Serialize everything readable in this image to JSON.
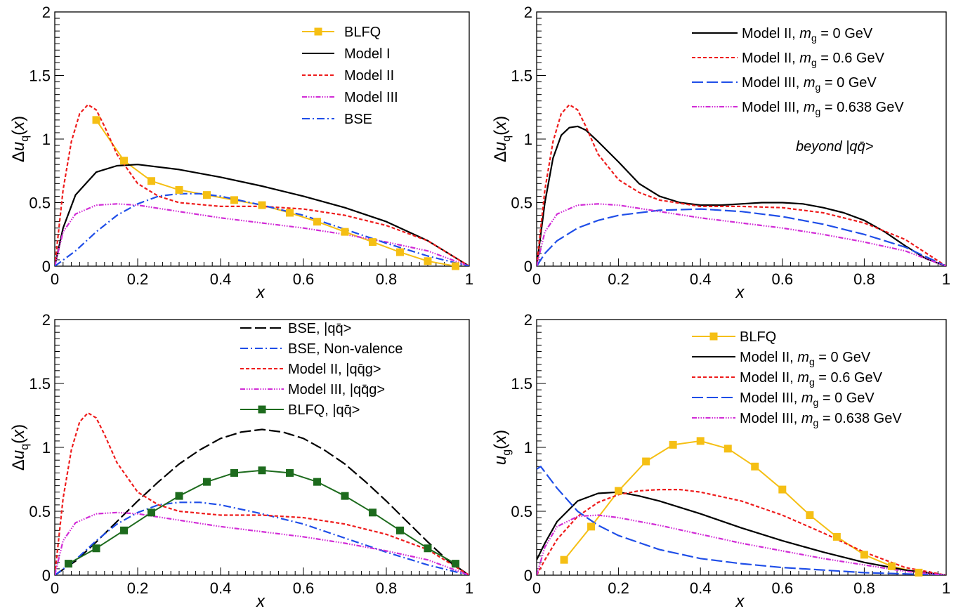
{
  "chart_data": [
    {
      "type": "line",
      "xlabel": "x",
      "ylabel": "Δu_q(x)",
      "xlim": [
        0,
        1
      ],
      "ylim": [
        0,
        2
      ],
      "xticks": [
        "0",
        "0.2",
        "0.4",
        "0.6",
        "0.8",
        "1"
      ],
      "yticks": [
        "0",
        "0.5",
        "1",
        "1.5",
        "2"
      ],
      "grid": false,
      "legend_position": "top-right",
      "annotation": "",
      "series": [
        {
          "name": "BLFQ",
          "color": "#f5bf14",
          "dash": "",
          "marker": "square",
          "x": [
            0.1,
            0.167,
            0.233,
            0.3,
            0.367,
            0.433,
            0.5,
            0.567,
            0.633,
            0.7,
            0.767,
            0.833,
            0.9,
            0.967
          ],
          "y": [
            1.15,
            0.83,
            0.67,
            0.6,
            0.56,
            0.52,
            0.48,
            0.42,
            0.35,
            0.27,
            0.19,
            0.11,
            0.04,
            0.0
          ]
        },
        {
          "name": "Model I",
          "color": "#000000",
          "dash": "",
          "x": [
            0,
            0.02,
            0.05,
            0.1,
            0.15,
            0.2,
            0.3,
            0.4,
            0.5,
            0.6,
            0.7,
            0.8,
            0.9,
            1.0
          ],
          "y": [
            0,
            0.3,
            0.56,
            0.74,
            0.79,
            0.8,
            0.76,
            0.7,
            0.63,
            0.55,
            0.46,
            0.35,
            0.2,
            0
          ]
        },
        {
          "name": "Model II",
          "color": "#ee1c1c",
          "dash": "5,3",
          "x": [
            0,
            0.02,
            0.04,
            0.06,
            0.08,
            0.1,
            0.12,
            0.15,
            0.2,
            0.25,
            0.3,
            0.4,
            0.5,
            0.6,
            0.7,
            0.8,
            0.9,
            1.0
          ],
          "y": [
            0,
            0.6,
            0.98,
            1.2,
            1.27,
            1.23,
            1.1,
            0.88,
            0.65,
            0.55,
            0.5,
            0.47,
            0.47,
            0.45,
            0.4,
            0.32,
            0.2,
            0
          ]
        },
        {
          "name": "Model III",
          "color": "#d12bd6",
          "dash": "7,2,1.5,2,1.5,2,1.5,2",
          "x": [
            0,
            0.02,
            0.05,
            0.1,
            0.15,
            0.2,
            0.3,
            0.4,
            0.5,
            0.6,
            0.7,
            0.8,
            0.9,
            1.0
          ],
          "y": [
            0,
            0.27,
            0.41,
            0.48,
            0.49,
            0.48,
            0.43,
            0.38,
            0.34,
            0.3,
            0.25,
            0.19,
            0.12,
            0
          ]
        },
        {
          "name": "BSE",
          "color": "#1f4ee8",
          "dash": "11,4,2,4",
          "x": [
            0,
            0.05,
            0.1,
            0.15,
            0.2,
            0.25,
            0.3,
            0.35,
            0.4,
            0.5,
            0.6,
            0.7,
            0.8,
            0.9,
            1.0
          ],
          "y": [
            0,
            0.12,
            0.27,
            0.4,
            0.49,
            0.55,
            0.57,
            0.57,
            0.55,
            0.48,
            0.4,
            0.29,
            0.18,
            0.08,
            0
          ]
        }
      ]
    },
    {
      "type": "line",
      "xlabel": "x",
      "ylabel": "Δu_q(x)",
      "xlim": [
        0,
        1
      ],
      "ylim": [
        0,
        2
      ],
      "xticks": [
        "0",
        "0.2",
        "0.4",
        "0.6",
        "0.8",
        "1"
      ],
      "yticks": [
        "0",
        "0.5",
        "1",
        "1.5",
        "2"
      ],
      "grid": false,
      "legend_position": "top-right",
      "annotation": "beyond |qq̄>",
      "series": [
        {
          "name": "Model II,  m_g = 0 GeV",
          "color": "#000000",
          "dash": "",
          "x": [
            0,
            0.02,
            0.04,
            0.06,
            0.08,
            0.1,
            0.12,
            0.15,
            0.2,
            0.25,
            0.3,
            0.35,
            0.4,
            0.45,
            0.5,
            0.55,
            0.6,
            0.65,
            0.7,
            0.75,
            0.8,
            0.85,
            0.9,
            0.95,
            1.0
          ],
          "y": [
            0,
            0.5,
            0.85,
            1.03,
            1.09,
            1.1,
            1.07,
            0.98,
            0.82,
            0.65,
            0.55,
            0.5,
            0.48,
            0.48,
            0.49,
            0.5,
            0.5,
            0.49,
            0.46,
            0.42,
            0.36,
            0.27,
            0.16,
            0.06,
            0
          ]
        },
        {
          "name": "Model II,  m_g = 0.6 GeV",
          "color": "#ee1c1c",
          "dash": "5,3",
          "x": [
            0,
            0.02,
            0.04,
            0.06,
            0.08,
            0.1,
            0.12,
            0.15,
            0.2,
            0.25,
            0.3,
            0.4,
            0.5,
            0.6,
            0.7,
            0.8,
            0.9,
            1.0
          ],
          "y": [
            0,
            0.6,
            0.98,
            1.2,
            1.27,
            1.23,
            1.1,
            0.88,
            0.68,
            0.58,
            0.52,
            0.47,
            0.47,
            0.46,
            0.42,
            0.34,
            0.21,
            0
          ]
        },
        {
          "name": "Model III, m_g = 0 GeV",
          "color": "#1f4ee8",
          "dash": "16,5",
          "x": [
            0,
            0.02,
            0.05,
            0.1,
            0.15,
            0.2,
            0.3,
            0.4,
            0.5,
            0.6,
            0.7,
            0.8,
            0.9,
            1.0
          ],
          "y": [
            0,
            0.1,
            0.2,
            0.3,
            0.36,
            0.4,
            0.44,
            0.45,
            0.43,
            0.39,
            0.33,
            0.25,
            0.15,
            0
          ]
        },
        {
          "name": "Model III, m_g = 0.638 GeV",
          "color": "#d12bd6",
          "dash": "7,2,1.5,2,1.5,2,1.5,2",
          "x": [
            0,
            0.02,
            0.05,
            0.1,
            0.15,
            0.2,
            0.3,
            0.4,
            0.5,
            0.6,
            0.7,
            0.8,
            0.9,
            1.0
          ],
          "y": [
            0,
            0.27,
            0.41,
            0.48,
            0.49,
            0.48,
            0.43,
            0.38,
            0.34,
            0.3,
            0.25,
            0.19,
            0.12,
            0
          ]
        }
      ]
    },
    {
      "type": "line",
      "xlabel": "x",
      "ylabel": "Δu_q(x)",
      "xlim": [
        0,
        1
      ],
      "ylim": [
        0,
        2
      ],
      "xticks": [
        "0",
        "0.2",
        "0.4",
        "0.6",
        "0.8",
        "1"
      ],
      "yticks": [
        "0",
        "0.5",
        "1",
        "1.5",
        "2"
      ],
      "grid": false,
      "legend_position": "top-right",
      "annotation": "",
      "series": [
        {
          "name": "BSE, |qq̄>",
          "color": "#000000",
          "dash": "16,5",
          "x": [
            0,
            0.05,
            0.1,
            0.15,
            0.2,
            0.25,
            0.3,
            0.35,
            0.4,
            0.45,
            0.5,
            0.55,
            0.6,
            0.65,
            0.7,
            0.75,
            0.8,
            0.85,
            0.9,
            0.95,
            1.0
          ],
          "y": [
            0,
            0.11,
            0.26,
            0.42,
            0.58,
            0.73,
            0.87,
            0.98,
            1.07,
            1.12,
            1.14,
            1.12,
            1.07,
            0.98,
            0.87,
            0.73,
            0.58,
            0.42,
            0.26,
            0.11,
            0
          ]
        },
        {
          "name": "BSE, Non-valence",
          "color": "#1f4ee8",
          "dash": "11,4,2,4",
          "x": [
            0,
            0.05,
            0.1,
            0.15,
            0.2,
            0.25,
            0.3,
            0.35,
            0.4,
            0.5,
            0.6,
            0.7,
            0.8,
            0.9,
            1.0
          ],
          "y": [
            0,
            0.12,
            0.27,
            0.4,
            0.49,
            0.55,
            0.57,
            0.57,
            0.55,
            0.48,
            0.4,
            0.29,
            0.18,
            0.08,
            0
          ]
        },
        {
          "name": "Model II,  |qq̄g>",
          "color": "#ee1c1c",
          "dash": "5,3",
          "x": [
            0,
            0.02,
            0.04,
            0.06,
            0.08,
            0.1,
            0.12,
            0.15,
            0.2,
            0.25,
            0.3,
            0.4,
            0.5,
            0.6,
            0.7,
            0.8,
            0.9,
            1.0
          ],
          "y": [
            0,
            0.6,
            0.98,
            1.2,
            1.27,
            1.23,
            1.1,
            0.88,
            0.65,
            0.55,
            0.5,
            0.47,
            0.47,
            0.45,
            0.4,
            0.32,
            0.2,
            0
          ]
        },
        {
          "name": "Model III, |qq̄g>",
          "color": "#d12bd6",
          "dash": "7,2,1.5,2,1.5,2,1.5,2",
          "x": [
            0,
            0.02,
            0.05,
            0.1,
            0.15,
            0.2,
            0.3,
            0.4,
            0.5,
            0.6,
            0.7,
            0.8,
            0.9,
            1.0
          ],
          "y": [
            0,
            0.27,
            0.41,
            0.48,
            0.49,
            0.48,
            0.43,
            0.38,
            0.34,
            0.3,
            0.25,
            0.19,
            0.12,
            0
          ]
        },
        {
          "name": "BLFQ, |qq̄>",
          "color": "#1d6b1d",
          "dash": "",
          "marker": "square",
          "x": [
            0.033,
            0.1,
            0.167,
            0.233,
            0.3,
            0.367,
            0.433,
            0.5,
            0.567,
            0.633,
            0.7,
            0.767,
            0.833,
            0.9,
            0.967
          ],
          "y": [
            0.09,
            0.21,
            0.35,
            0.49,
            0.62,
            0.73,
            0.8,
            0.82,
            0.8,
            0.73,
            0.62,
            0.49,
            0.35,
            0.21,
            0.09
          ]
        }
      ]
    },
    {
      "type": "line",
      "xlabel": "x",
      "ylabel": "u_g(x)",
      "xlim": [
        0,
        1
      ],
      "ylim": [
        0,
        2
      ],
      "xticks": [
        "0",
        "0.2",
        "0.4",
        "0.6",
        "0.8",
        "1"
      ],
      "yticks": [
        "0",
        "0.5",
        "1",
        "1.5",
        "2"
      ],
      "grid": false,
      "legend_position": "top-right",
      "annotation": "",
      "series": [
        {
          "name": "BLFQ",
          "color": "#f5bf14",
          "dash": "",
          "marker": "square",
          "x": [
            0.067,
            0.133,
            0.2,
            0.267,
            0.333,
            0.4,
            0.467,
            0.533,
            0.6,
            0.667,
            0.733,
            0.8,
            0.867,
            0.933
          ],
          "y": [
            0.12,
            0.38,
            0.66,
            0.89,
            1.02,
            1.05,
            0.99,
            0.85,
            0.67,
            0.47,
            0.3,
            0.16,
            0.07,
            0.02
          ]
        },
        {
          "name": "Model II,  m_g = 0 GeV",
          "color": "#000000",
          "dash": "",
          "x": [
            0,
            0.02,
            0.05,
            0.1,
            0.15,
            0.2,
            0.25,
            0.3,
            0.4,
            0.5,
            0.6,
            0.7,
            0.8,
            0.9,
            1.0
          ],
          "y": [
            0.12,
            0.25,
            0.42,
            0.58,
            0.64,
            0.65,
            0.62,
            0.58,
            0.48,
            0.37,
            0.27,
            0.18,
            0.1,
            0.04,
            0
          ]
        },
        {
          "name": "Model II,  m_g = 0.6 GeV",
          "color": "#ee1c1c",
          "dash": "5,3",
          "x": [
            0,
            0.02,
            0.05,
            0.1,
            0.15,
            0.2,
            0.25,
            0.3,
            0.35,
            0.4,
            0.5,
            0.6,
            0.7,
            0.8,
            0.9,
            1.0
          ],
          "y": [
            0,
            0.12,
            0.28,
            0.46,
            0.57,
            0.63,
            0.66,
            0.67,
            0.67,
            0.65,
            0.58,
            0.47,
            0.33,
            0.18,
            0.06,
            0
          ]
        },
        {
          "name": "Model III, m_g = 0 GeV",
          "color": "#1f4ee8",
          "dash": "16,5",
          "x": [
            0,
            0.01,
            0.05,
            0.1,
            0.15,
            0.2,
            0.3,
            0.4,
            0.5,
            0.6,
            0.7,
            0.8,
            0.9,
            1.0
          ],
          "y": [
            0.83,
            0.85,
            0.68,
            0.5,
            0.39,
            0.31,
            0.2,
            0.13,
            0.09,
            0.06,
            0.04,
            0.02,
            0.01,
            0
          ]
        },
        {
          "name": "Model III, m_g = 0.638 GeV",
          "color": "#d12bd6",
          "dash": "7,2,1.5,2,1.5,2,1.5,2",
          "x": [
            0,
            0.02,
            0.05,
            0.1,
            0.15,
            0.2,
            0.3,
            0.4,
            0.5,
            0.6,
            0.7,
            0.8,
            0.9,
            1.0
          ],
          "y": [
            0,
            0.22,
            0.38,
            0.46,
            0.47,
            0.45,
            0.39,
            0.32,
            0.25,
            0.19,
            0.13,
            0.08,
            0.03,
            0
          ]
        }
      ]
    }
  ]
}
